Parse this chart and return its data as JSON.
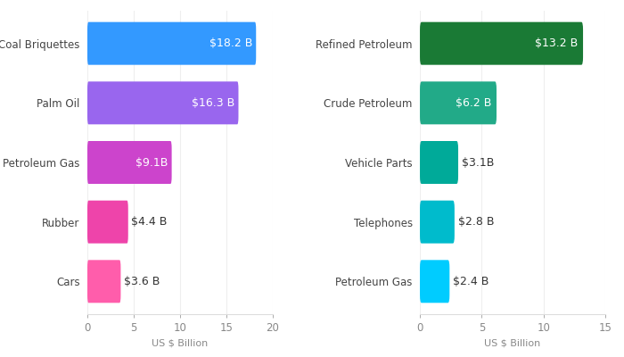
{
  "left_categories": [
    "Cars",
    "Rubber",
    "Petroleum Gas",
    "Palm Oil",
    "Coal Briquettes"
  ],
  "left_values": [
    3.6,
    4.4,
    9.1,
    16.3,
    18.2
  ],
  "left_labels": [
    "$3.6 B",
    "$4.4 B",
    "$9.1B",
    "$16.3 B",
    "$18.2 B"
  ],
  "left_colors": [
    "#ff5dab",
    "#ee44aa",
    "#cc44cc",
    "#9966ee",
    "#3399ff"
  ],
  "left_xlim": [
    0,
    20
  ],
  "left_xticks": [
    0,
    5,
    10,
    15,
    20
  ],
  "right_categories": [
    "Petroleum Gas",
    "Telephones",
    "Vehicle Parts",
    "Crude Petroleum",
    "Refined Petroleum"
  ],
  "right_values": [
    2.4,
    2.8,
    3.1,
    6.2,
    13.2
  ],
  "right_labels": [
    "$2.4 B",
    "$2.8 B",
    "$3.1B",
    "$6.2 B",
    "$13.2 B"
  ],
  "right_colors": [
    "#00ccff",
    "#00bbcc",
    "#00aa99",
    "#22aa88",
    "#1a7a35"
  ],
  "right_xlim": [
    0,
    15
  ],
  "right_xticks": [
    0,
    5,
    10,
    15
  ],
  "xlabel": "US $ Billion",
  "background_color": "#ffffff",
  "bar_height": 0.72,
  "label_fontsize": 9,
  "tick_fontsize": 8.5,
  "xlabel_fontsize": 8,
  "inside_threshold": 5.5
}
